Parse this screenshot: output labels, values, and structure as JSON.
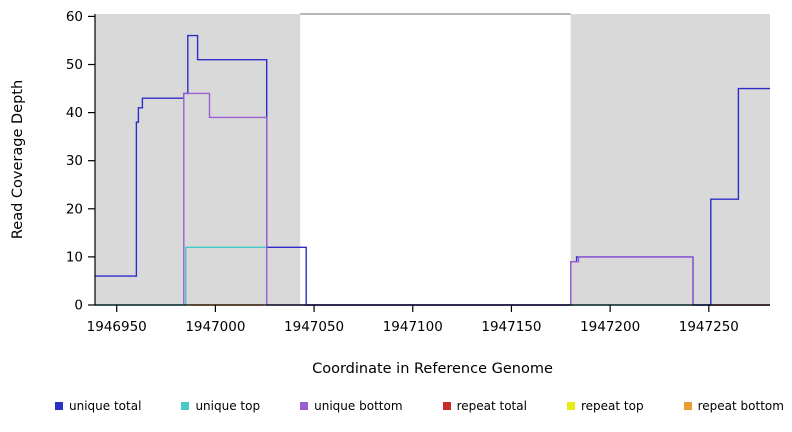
{
  "chart_data": {
    "type": "line",
    "title": "",
    "xlabel": "Coordinate in Reference Genome",
    "ylabel": "Read Coverage Depth",
    "xlim": [
      1946939,
      1947281
    ],
    "ylim": [
      0,
      60.5
    ],
    "xticks": [
      1946950,
      1947000,
      1947050,
      1947100,
      1947150,
      1947200,
      1947250
    ],
    "yticks": [
      0,
      10,
      20,
      30,
      40,
      50,
      60
    ],
    "grid": false,
    "legend_position": "bottom",
    "background_color": "#ffffff",
    "shaded_regions": [
      {
        "x0": 1946939,
        "x1": 1947043,
        "color": "#d9d9d9"
      },
      {
        "x0": 1947180,
        "x1": 1947281,
        "color": "#d9d9d9"
      }
    ],
    "top_boundary_line": {
      "x0": 1947043,
      "x1": 1947180,
      "y": 60.5,
      "color": "#8a8a8a"
    },
    "draw_order": [
      "unique top",
      "repeat bottom",
      "unique total",
      "unique bottom",
      "repeat total",
      "repeat top"
    ],
    "series": [
      {
        "name": "unique total",
        "color": "#2d2dc8",
        "points": [
          [
            1946939,
            6
          ],
          [
            1946960,
            6
          ],
          [
            1946960,
            38
          ],
          [
            1946961,
            38
          ],
          [
            1946961,
            41
          ],
          [
            1946963,
            41
          ],
          [
            1946963,
            43
          ],
          [
            1946984,
            43
          ],
          [
            1946984,
            44
          ],
          [
            1946986,
            44
          ],
          [
            1946986,
            56
          ],
          [
            1946991,
            56
          ],
          [
            1946991,
            51
          ],
          [
            1947026,
            51
          ],
          [
            1947026,
            12
          ],
          [
            1947046,
            12
          ],
          [
            1947046,
            0
          ],
          [
            1947180,
            0
          ],
          [
            1947180,
            9
          ],
          [
            1947183,
            9
          ],
          [
            1947183,
            10
          ],
          [
            1947242,
            10
          ],
          [
            1947242,
            0
          ],
          [
            1947251,
            0
          ],
          [
            1947251,
            22
          ],
          [
            1947265,
            22
          ],
          [
            1947265,
            45
          ],
          [
            1947281,
            45
          ]
        ]
      },
      {
        "name": "unique top",
        "color": "#45c9c9",
        "points": [
          [
            1946939,
            0
          ],
          [
            1946985,
            0
          ],
          [
            1946985,
            12
          ],
          [
            1947026,
            12
          ],
          [
            1947026,
            0
          ],
          [
            1947281,
            0
          ]
        ]
      },
      {
        "name": "unique bottom",
        "color": "#9a5fd2",
        "points": [
          [
            1946984,
            0
          ],
          [
            1946984,
            44
          ],
          [
            1946997,
            44
          ],
          [
            1946997,
            39
          ],
          [
            1947026,
            39
          ],
          [
            1947026,
            0
          ],
          [
            1947180,
            0
          ],
          [
            1947180,
            9
          ],
          [
            1947184,
            9
          ],
          [
            1947184,
            10
          ],
          [
            1947242,
            10
          ],
          [
            1947242,
            0
          ]
        ]
      },
      {
        "name": "repeat total",
        "color": "#c92a2a",
        "points": [
          [
            1947251,
            0
          ],
          [
            1947281,
            0
          ]
        ]
      },
      {
        "name": "repeat top",
        "color": "#ebeb17",
        "points": []
      },
      {
        "name": "repeat bottom",
        "color": "#ef9b30",
        "points": [
          [
            1946987,
            0
          ],
          [
            1947024,
            0
          ]
        ]
      }
    ]
  }
}
